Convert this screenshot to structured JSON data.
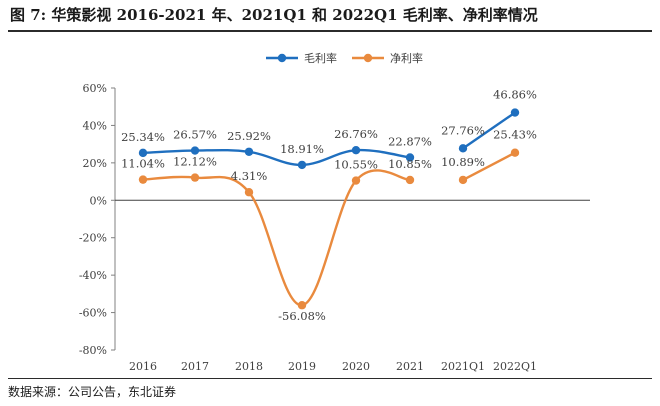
{
  "title": "图 7: 华策影视 2016-2021 年、2021Q1 和 2022Q1 毛利率、净利率情况",
  "source": "数据来源：公司公告，东北证券",
  "chart_data": {
    "type": "line",
    "categories": [
      "2016",
      "2017",
      "2018",
      "2019",
      "2020",
      "2021",
      "2021Q1",
      "2022Q1"
    ],
    "yticks": [
      "60%",
      "40%",
      "20%",
      "0%",
      "-20%",
      "-40%",
      "-60%",
      "-80%"
    ],
    "ylim": [
      -80,
      60
    ],
    "grid": false,
    "legend_position": "top-center",
    "series": [
      {
        "name": "毛利率",
        "color": "#1f6fbf",
        "values": [
          25.34,
          26.57,
          25.92,
          18.91,
          26.76,
          22.87,
          27.76,
          46.86
        ],
        "labels": [
          "25.34%",
          "26.57%",
          "25.92%",
          "18.91%",
          "26.76%",
          "22.87%",
          "27.76%",
          "46.86%"
        ],
        "segments": [
          [
            0,
            5
          ],
          [
            6,
            7
          ]
        ]
      },
      {
        "name": "净利率",
        "color": "#e98a3e",
        "values": [
          11.04,
          12.12,
          4.31,
          -56.08,
          10.55,
          10.85,
          10.89,
          25.43
        ],
        "labels": [
          "11.04%",
          "12.12%",
          "4.31%",
          "-56.08%",
          "10.55%",
          "10.85%",
          "10.89%",
          "25.43%"
        ],
        "segments": [
          [
            0,
            5
          ],
          [
            6,
            7
          ]
        ]
      }
    ]
  }
}
